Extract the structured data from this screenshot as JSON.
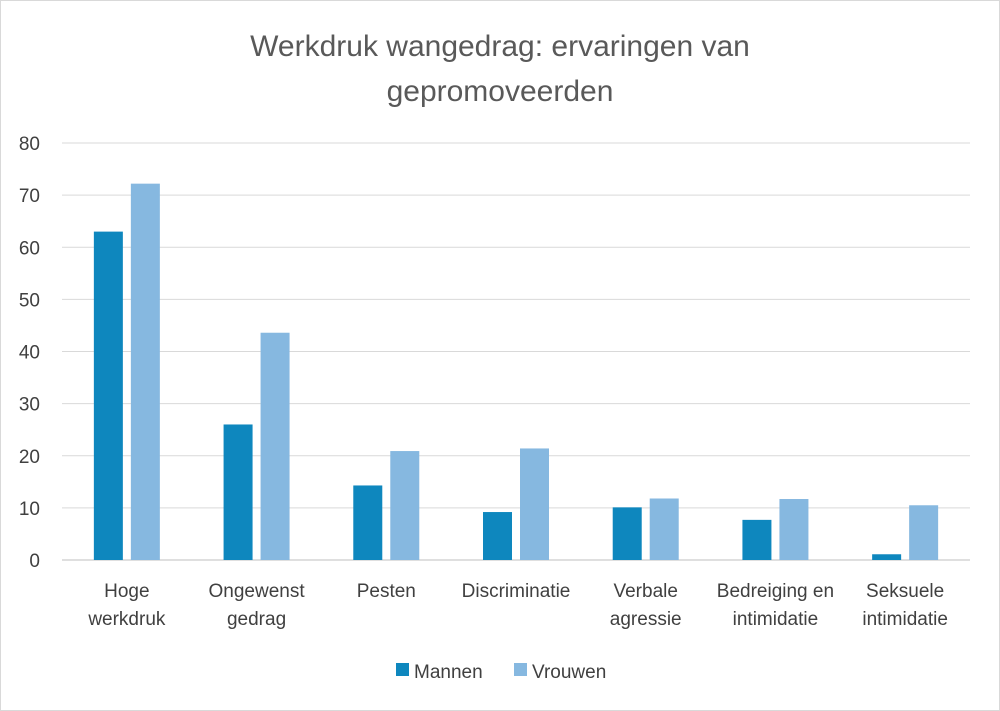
{
  "chart_data": {
    "type": "bar",
    "title_lines": [
      "Werkdruk wangedrag: ervaringen van",
      "gepromoveerden"
    ],
    "categories": [
      [
        "Hoge",
        "werkdruk"
      ],
      [
        "Ongewenst",
        "gedrag"
      ],
      [
        "Pesten"
      ],
      [
        "Discriminatie"
      ],
      [
        "Verbale",
        "agressie"
      ],
      [
        "Bedreiging en",
        "intimidatie"
      ],
      [
        "Seksuele",
        "intimidatie"
      ]
    ],
    "series": [
      {
        "name": "Mannen",
        "color": "#0e87be",
        "values": [
          63,
          26,
          14.3,
          9.2,
          10.1,
          7.7,
          1.1
        ]
      },
      {
        "name": "Vrouwen",
        "color": "#86b8e0",
        "values": [
          72.2,
          43.6,
          20.9,
          21.4,
          11.8,
          11.7,
          10.5
        ]
      }
    ],
    "ylim": [
      0,
      80
    ],
    "yticks": [
      0,
      10,
      20,
      30,
      40,
      50,
      60,
      70,
      80
    ],
    "grid": true,
    "legend_position": "bottom"
  }
}
